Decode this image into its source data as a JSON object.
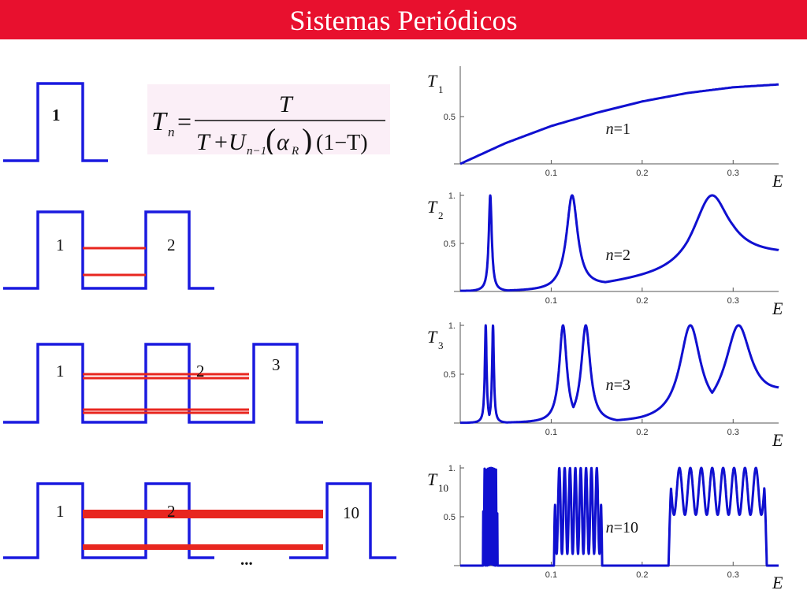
{
  "title": "Sistemas Periódicos",
  "formula": {
    "lhs": "T",
    "lhs_sub": "n",
    "eq": "=",
    "numerator": "T",
    "den_a": "T",
    "den_plus": "+",
    "den_U": "U",
    "den_U_sub": "n−1",
    "alpha": "α",
    "alpha_sub": "R",
    "den_tail": "(1−T)",
    "paren_open": "(",
    "paren_close": ")"
  },
  "colors": {
    "title_bg": "#e8102e",
    "potential": "#1a1adf",
    "levels": "#e8261f",
    "curve": "#1010d0",
    "formula_bg": "#fbeff7"
  },
  "diagram": {
    "row1": {
      "labels": [
        "1"
      ]
    },
    "row2": {
      "labels": [
        "1",
        "2"
      ]
    },
    "row3": {
      "labels": [
        "1",
        "2",
        "3"
      ]
    },
    "row4": {
      "labels": [
        "1",
        "2",
        "10"
      ],
      "ellipsis": "..."
    }
  },
  "chart_data": [
    {
      "type": "line",
      "ylabel": "T",
      "ylabel_sub": "1",
      "xlabel": "E",
      "annotation": "n=1",
      "xlim": [
        0,
        0.35
      ],
      "ylim": [
        0,
        1
      ],
      "xticks": [
        "0.1",
        "0.2",
        "0.3"
      ],
      "yticks": [
        "0.5"
      ],
      "x": [
        0.0,
        0.05,
        0.1,
        0.15,
        0.2,
        0.25,
        0.3,
        0.35
      ],
      "y": [
        0.0,
        0.22,
        0.4,
        0.54,
        0.66,
        0.75,
        0.81,
        0.84
      ]
    },
    {
      "type": "line",
      "ylabel": "T",
      "ylabel_sub": "2",
      "xlabel": "E",
      "annotation": "n=2",
      "xlim": [
        0,
        0.35
      ],
      "ylim": [
        0,
        1
      ],
      "xticks": [
        "0.1",
        "0.2",
        "0.3"
      ],
      "yticks": [
        "1.",
        "0.5"
      ],
      "peaks": [
        {
          "E": 0.033,
          "width": 0.002
        },
        {
          "E": 0.123,
          "width": 0.0075
        },
        {
          "E": 0.277,
          "width": 0.024
        }
      ],
      "baseline": [
        0.0,
        0.0,
        0.0,
        0.05,
        0.1,
        0.15,
        0.35,
        0.37
      ]
    },
    {
      "type": "line",
      "ylabel": "T",
      "ylabel_sub": "3",
      "xlabel": "E",
      "annotation": "n=3",
      "xlim": [
        0,
        0.35
      ],
      "ylim": [
        0,
        1
      ],
      "xticks": [
        "0.1",
        "0.2",
        "0.3"
      ],
      "yticks": [
        "1.",
        "0.5"
      ],
      "peaks": [
        {
          "E": 0.028,
          "width": 0.0012
        },
        {
          "E": 0.036,
          "width": 0.0012
        },
        {
          "E": 0.113,
          "width": 0.005
        },
        {
          "E": 0.138,
          "width": 0.006
        },
        {
          "E": 0.253,
          "width": 0.014
        },
        {
          "E": 0.306,
          "width": 0.017
        }
      ],
      "baseline": [
        0.0,
        0.0,
        0.0,
        0.0,
        0.0,
        0.02,
        0.12,
        0.27
      ]
    },
    {
      "type": "line",
      "ylabel": "T",
      "ylabel_sub": "10",
      "xlabel": "E",
      "annotation": "n=10",
      "xlim": [
        0,
        0.35
      ],
      "ylim": [
        0,
        1
      ],
      "xticks": [
        "0.1",
        "0.2",
        "0.3"
      ],
      "yticks": [
        "1.",
        "0.5"
      ],
      "bands": [
        {
          "from": 0.025,
          "to": 0.041,
          "peaks": 9,
          "dip": 0.0
        },
        {
          "from": 0.103,
          "to": 0.156,
          "peaks": 9,
          "dip": 0.12
        },
        {
          "from": 0.229,
          "to": 0.337,
          "peaks": 9,
          "dip": 0.52
        }
      ]
    }
  ]
}
